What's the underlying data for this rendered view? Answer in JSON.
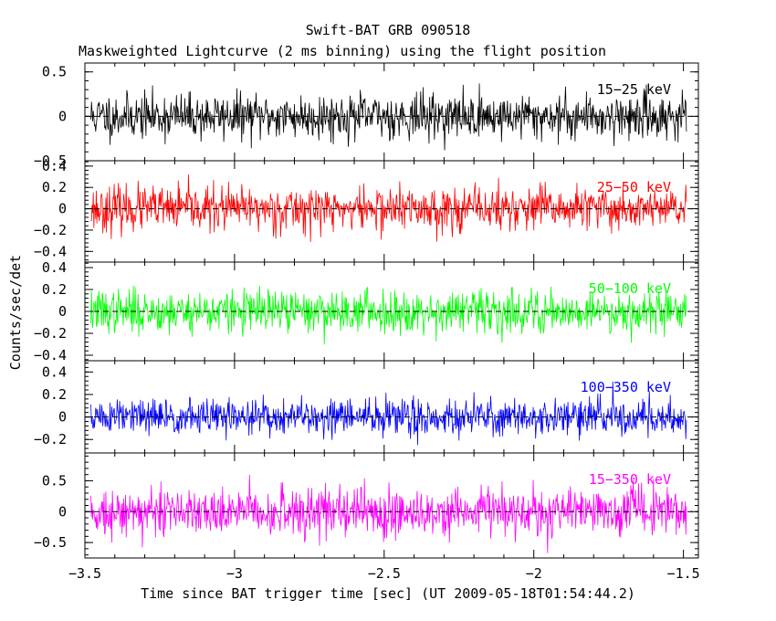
{
  "chart_data": {
    "type": "line",
    "title": "Swift-BAT GRB 090518",
    "subtitle": "Maskweighted Lightcurve (2 ms binning) using the flight position",
    "xlabel": "Time since BAT trigger time [sec] (UT 2009-05-18T01:54:44.2)",
    "ylabel": "Counts/sec/det",
    "xlim": [
      -3.5,
      -1.45
    ],
    "x_ticks": [
      -3.5,
      -3,
      -2.5,
      -2,
      -1.5
    ],
    "x_tick_labels": [
      "−3.5",
      "−3",
      "−2.5",
      "−2",
      "−1.5"
    ],
    "x_start": -3.48,
    "x_end": -1.49,
    "bin_width": 0.002,
    "panels": [
      {
        "label": "15−25 keV",
        "color": "#000000",
        "ylim": [
          -0.5,
          0.6
        ],
        "y_ticks": [
          -0.5,
          0,
          0.5
        ],
        "y_tick_labels": [
          "−0.5",
          "0",
          "0.5"
        ],
        "noise_amplitude": 0.17,
        "seed": 11
      },
      {
        "label": "25−50 keV",
        "color": "#ff0000",
        "ylim": [
          -0.5,
          0.45
        ],
        "y_ticks": [
          -0.4,
          -0.2,
          0,
          0.2,
          0.4
        ],
        "y_tick_labels": [
          "−0.4",
          "−0.2",
          "0",
          "0.2",
          "0.4"
        ],
        "noise_amplitude": 0.14,
        "seed": 23
      },
      {
        "label": "50−100 keV",
        "color": "#00ff00",
        "ylim": [
          -0.45,
          0.45
        ],
        "y_ticks": [
          -0.4,
          -0.2,
          0,
          0.2,
          0.4
        ],
        "y_tick_labels": [
          "−0.4",
          "−0.2",
          "0",
          "0.2",
          "0.4"
        ],
        "noise_amplitude": 0.13,
        "seed": 37
      },
      {
        "label": "100−350 keV",
        "color": "#0000ff",
        "ylim": [
          -0.32,
          0.5
        ],
        "y_ticks": [
          -0.2,
          0,
          0.2,
          0.4
        ],
        "y_tick_labels": [
          "−0.2",
          "0",
          "0.2",
          "0.4"
        ],
        "noise_amplitude": 0.11,
        "seed": 51
      },
      {
        "label": "15−350 keV",
        "color": "#ff00ff",
        "ylim": [
          -0.75,
          0.95
        ],
        "y_ticks": [
          -0.5,
          0,
          0.5
        ],
        "y_tick_labels": [
          "−0.5",
          "0",
          "0.5"
        ],
        "noise_amplitude": 0.26,
        "seed": 73
      }
    ]
  }
}
